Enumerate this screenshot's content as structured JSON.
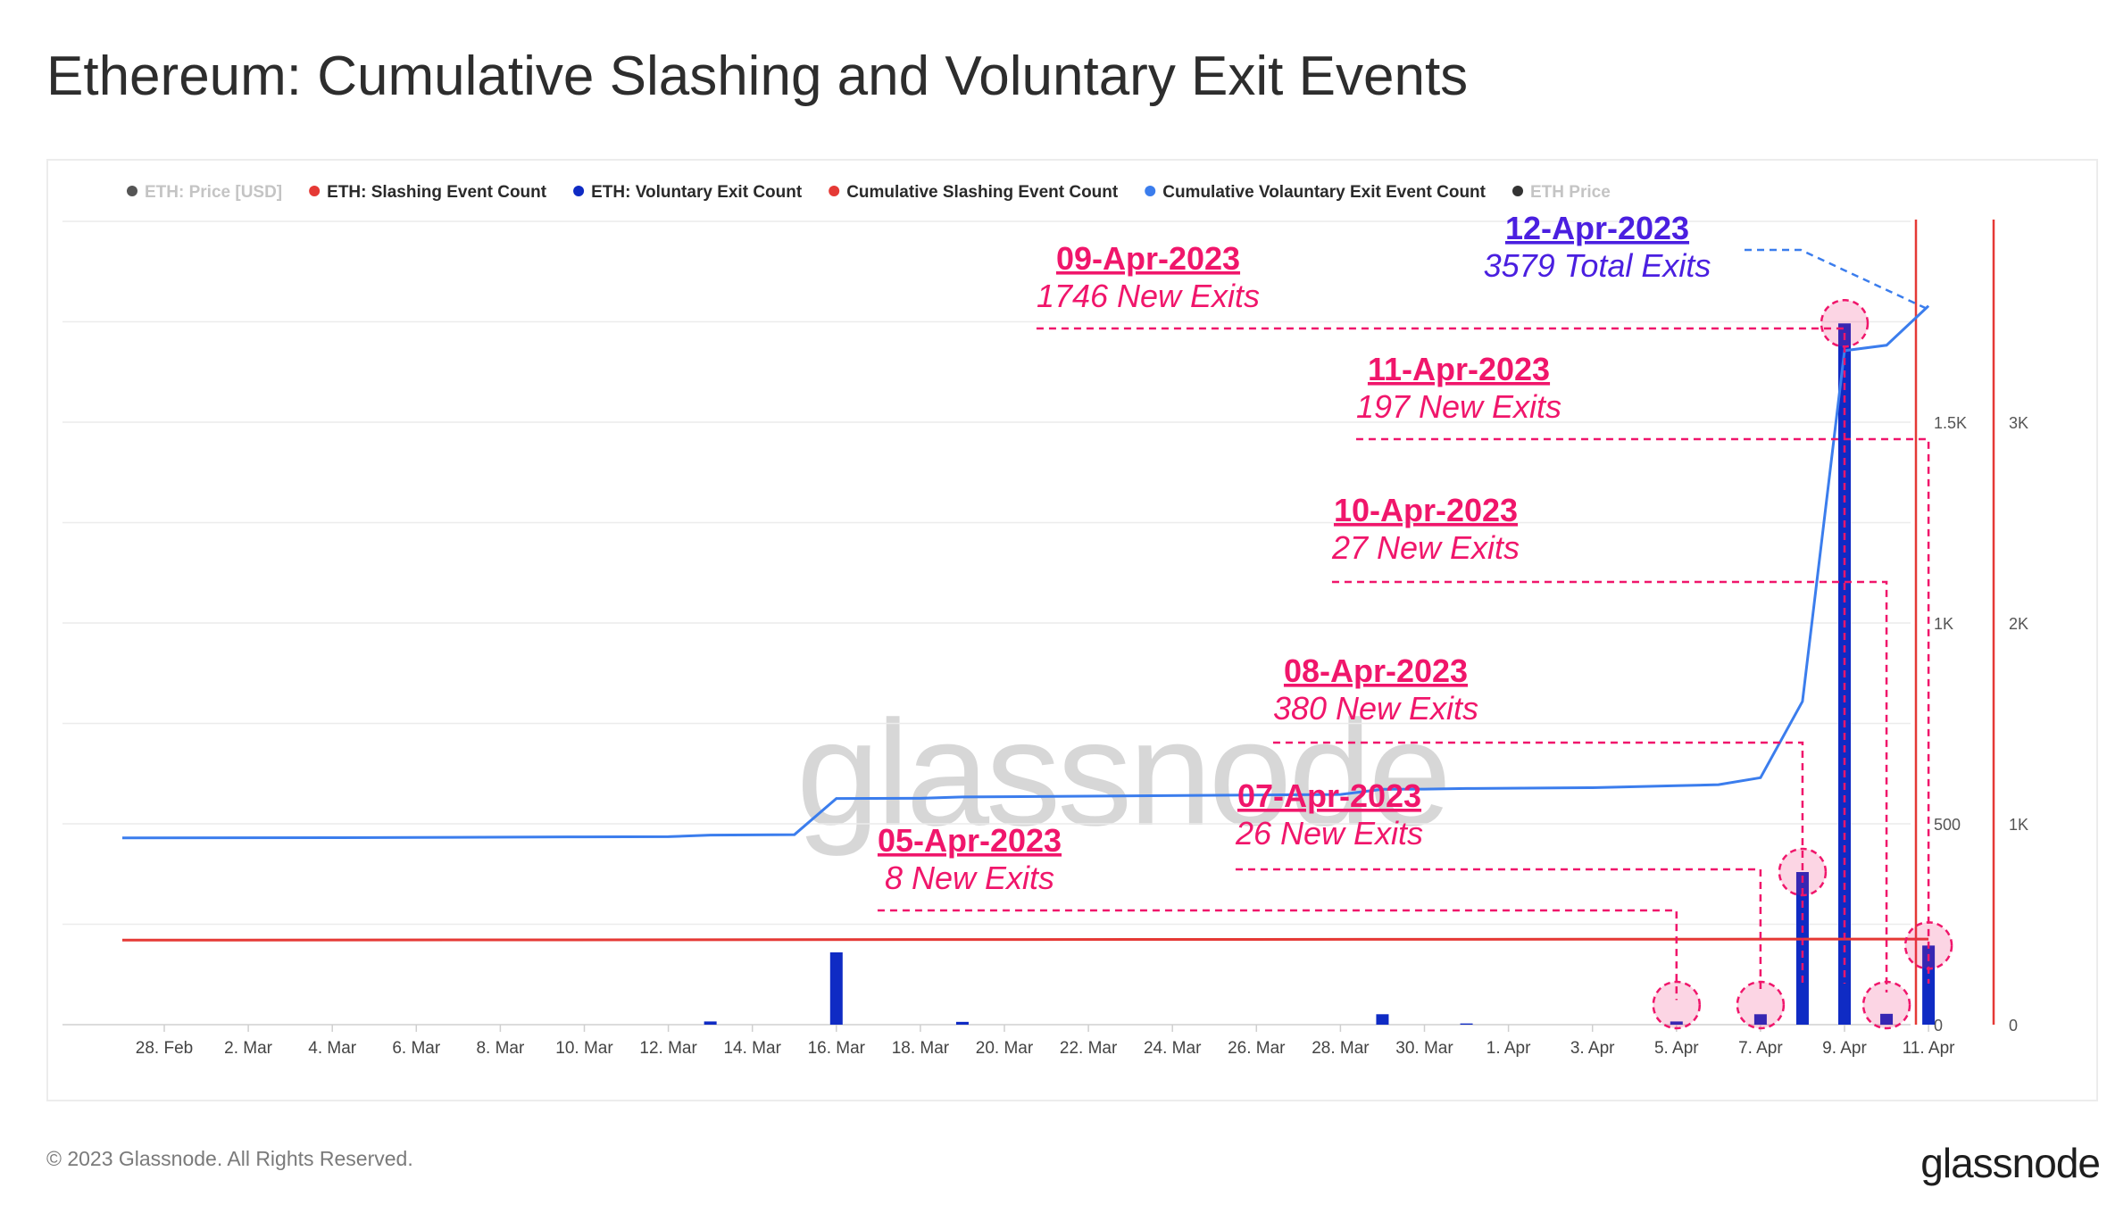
{
  "title": "Ethereum: Cumulative Slashing and Voluntary Exit Events",
  "footer": {
    "copyright": "© 2023 Glassnode. All Rights Reserved.",
    "logo": "glassnode"
  },
  "watermark": "glassnode",
  "colors": {
    "price": "#555555",
    "slashing": "#e53935",
    "exit_bars": "#0f2bc4",
    "cum_exit": "#3b7ded",
    "annotation": "#f0166b",
    "annotation_total": "#4a1fe0",
    "axis_right": "#e53935"
  },
  "chart_data": {
    "type": "bar",
    "legend": [
      {
        "label": "ETH: Price [USD]",
        "color": "#555555",
        "muted": true
      },
      {
        "label": "ETH: Slashing Event Count",
        "color": "#e53935",
        "muted": false
      },
      {
        "label": "ETH: Voluntary Exit Count",
        "color": "#0f2bc4",
        "muted": false
      },
      {
        "label": "Cumulative Slashing Event Count",
        "color": "#e53935",
        "muted": false
      },
      {
        "label": "Cumulative Volauntary Exit Event Count",
        "color": "#3b7ded",
        "muted": false
      },
      {
        "label": "ETH Price",
        "color": "#333333",
        "muted": true
      }
    ],
    "legend_position": "top",
    "grid": true,
    "x_ticks": [
      "28. Feb",
      "2. Mar",
      "4. Mar",
      "6. Mar",
      "8. Mar",
      "10. Mar",
      "12. Mar",
      "14. Mar",
      "16. Mar",
      "18. Mar",
      "20. Mar",
      "22. Mar",
      "24. Mar",
      "26. Mar",
      "28. Mar",
      "30. Mar",
      "1. Apr",
      "3. Apr",
      "5. Apr",
      "7. Apr",
      "9. Apr",
      "11. Apr"
    ],
    "y_axis_inner": {
      "ticks": [
        "0",
        "500",
        "1K",
        "1.5K"
      ],
      "range": [
        0,
        2000
      ]
    },
    "y_axis_outer": {
      "ticks": [
        "0",
        "1K",
        "2K",
        "3K"
      ],
      "range": [
        0,
        4000
      ]
    },
    "series": [
      {
        "name": "ETH: Voluntary Exit Count",
        "type": "bar",
        "axis": "inner",
        "points": [
          {
            "date": "2023-03-13",
            "value": 8
          },
          {
            "date": "2023-03-16",
            "value": 180
          },
          {
            "date": "2023-03-19",
            "value": 7
          },
          {
            "date": "2023-03-29",
            "value": 26
          },
          {
            "date": "2023-03-31",
            "value": 3
          },
          {
            "date": "2023-04-05",
            "value": 8
          },
          {
            "date": "2023-04-07",
            "value": 26
          },
          {
            "date": "2023-04-08",
            "value": 380
          },
          {
            "date": "2023-04-09",
            "value": 1746
          },
          {
            "date": "2023-04-10",
            "value": 27
          },
          {
            "date": "2023-04-11",
            "value": 197
          }
        ]
      },
      {
        "name": "Cumulative Volauntary Exit Event Count",
        "type": "line",
        "axis": "outer",
        "points": [
          {
            "date": "2023-02-27",
            "value": 930
          },
          {
            "date": "2023-03-04",
            "value": 931
          },
          {
            "date": "2023-03-10",
            "value": 935
          },
          {
            "date": "2023-03-12",
            "value": 936
          },
          {
            "date": "2023-03-13",
            "value": 944
          },
          {
            "date": "2023-03-15",
            "value": 946
          },
          {
            "date": "2023-03-16",
            "value": 1126
          },
          {
            "date": "2023-03-18",
            "value": 1127
          },
          {
            "date": "2023-03-19",
            "value": 1134
          },
          {
            "date": "2023-03-28",
            "value": 1146
          },
          {
            "date": "2023-03-29",
            "value": 1172
          },
          {
            "date": "2023-03-30",
            "value": 1173
          },
          {
            "date": "2023-03-31",
            "value": 1176
          },
          {
            "date": "2023-04-03",
            "value": 1180
          },
          {
            "date": "2023-04-05",
            "value": 1190
          },
          {
            "date": "2023-04-06",
            "value": 1195
          },
          {
            "date": "2023-04-07",
            "value": 1230
          },
          {
            "date": "2023-04-08",
            "value": 1610
          },
          {
            "date": "2023-04-09",
            "value": 3356
          },
          {
            "date": "2023-04-10",
            "value": 3383
          },
          {
            "date": "2023-04-11",
            "value": 3579
          }
        ]
      },
      {
        "name": "Cumulative Slashing Event Count",
        "type": "line",
        "axis": "outer",
        "points": [
          {
            "date": "2023-02-27",
            "value": 421
          },
          {
            "date": "2023-03-20",
            "value": 424
          },
          {
            "date": "2023-04-11",
            "value": 426
          }
        ]
      }
    ],
    "annotations": [
      {
        "title": "05-Apr-2023",
        "subtitle": "8 New Exits",
        "date": "2023-04-05",
        "value": 8,
        "style": "new"
      },
      {
        "title": "07-Apr-2023",
        "subtitle": "26 New Exits",
        "date": "2023-04-07",
        "value": 26,
        "style": "new"
      },
      {
        "title": "08-Apr-2023",
        "subtitle": "380 New Exits",
        "date": "2023-04-08",
        "value": 380,
        "style": "new"
      },
      {
        "title": "09-Apr-2023",
        "subtitle": "1746 New Exits",
        "date": "2023-04-09",
        "value": 1746,
        "style": "new"
      },
      {
        "title": "10-Apr-2023",
        "subtitle": "27 New Exits",
        "date": "2023-04-10",
        "value": 27,
        "style": "new"
      },
      {
        "title": "11-Apr-2023",
        "subtitle": "197 New Exits",
        "date": "2023-04-11",
        "value": 197,
        "style": "new"
      },
      {
        "title": "12-Apr-2023",
        "subtitle": "3579 Total Exits",
        "date": "2023-04-11",
        "value": 3579,
        "style": "total"
      }
    ]
  }
}
